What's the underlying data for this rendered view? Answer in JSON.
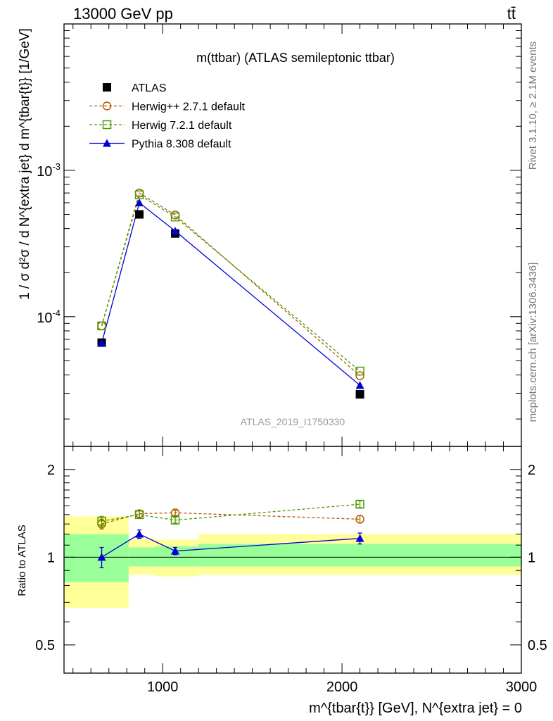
{
  "header": {
    "left": "13000 GeV pp",
    "right": "tt̄"
  },
  "side": {
    "rivet": "Rivet 3.1.10, ≥ 2.1M events",
    "mcplots": "mcplots.cern.ch [arXiv:1306.3436]"
  },
  "chart_data": {
    "type": "line",
    "title": "m(ttbar) (ATLAS semileptonic ttbar)",
    "analysis_tag": "ATLAS_2019_I1750330",
    "ylabel": "1 / σ d²σ / d N^{extra jet} d m^{tbar{t}} [1/GeV]",
    "xlabel": "m^{tbar{t}} [GeV], N^{extra jet} = 0",
    "ratio_ylabel": "Ratio to ATLAS",
    "xlim": [
      450,
      3000
    ],
    "ylim": [
      1.3e-05,
      0.01
    ],
    "y_scale": "log",
    "ratio_ylim": [
      0.4,
      2.4
    ],
    "ratio_y_scale": "log",
    "legend_position": "top-left",
    "x_ticks": [
      1000,
      2000,
      3000
    ],
    "x_tick_labels": [
      "1000",
      "2000",
      "3000"
    ],
    "y_ticks": [
      {
        "value": 0.001,
        "base": "10",
        "exp": "-3"
      },
      {
        "value": 0.0001,
        "base": "10",
        "exp": "-4"
      }
    ],
    "ratio_ticks": [
      {
        "value": 0.5,
        "label": "0.5"
      },
      {
        "value": 1,
        "label": "1"
      },
      {
        "value": 2,
        "label": "2"
      }
    ],
    "bins": [
      {
        "lo": 450,
        "hi": 810
      },
      {
        "lo": 810,
        "hi": 960
      },
      {
        "lo": 960,
        "hi": 1200
      },
      {
        "lo": 1200,
        "hi": 3000
      }
    ],
    "x": [
      660,
      870,
      1070,
      2100
    ],
    "band_outer": [
      [
        0.67,
        1.38
      ],
      [
        0.87,
        1.16
      ],
      [
        0.86,
        1.15
      ],
      [
        0.87,
        1.2
      ]
    ],
    "band_inner": [
      [
        0.82,
        1.2
      ],
      [
        0.93,
        1.08
      ],
      [
        0.93,
        1.09
      ],
      [
        0.93,
        1.11
      ]
    ],
    "series": [
      {
        "name": "ATLAS",
        "marker": "square-filled",
        "color": "#000000",
        "dashed": false,
        "values": [
          6.65e-05,
          0.0005,
          0.00037,
          2.95e-05
        ],
        "ratio": [
          1,
          1,
          1,
          1
        ],
        "ratio_err": [
          0,
          0,
          0,
          0
        ]
      },
      {
        "name": "Herwig++ 2.7.1 default",
        "marker": "circle-open",
        "color": "#b35900",
        "dashed": true,
        "values": [
          8.65e-05,
          0.0007,
          0.000495,
          3.95e-05
        ],
        "ratio": [
          1.3,
          1.41,
          1.42,
          1.35
        ],
        "ratio_err": [
          0.05,
          0.04,
          0.03,
          0.04
        ]
      },
      {
        "name": "Herwig 7.2.1 default",
        "marker": "square-open",
        "color": "#4c9a00",
        "dashed": true,
        "values": [
          8.65e-05,
          0.00068,
          0.00048,
          4.25e-05
        ],
        "ratio": [
          1.33,
          1.4,
          1.34,
          1.52
        ],
        "ratio_err": [
          0.05,
          0.04,
          0.03,
          0.04
        ]
      },
      {
        "name": "Pythia 8.308 default",
        "marker": "triangle-filled",
        "color": "#0000d4",
        "dashed": false,
        "values": [
          6.6e-05,
          0.0006,
          0.000385,
          3.4e-05
        ],
        "ratio": [
          1.0,
          1.2,
          1.05,
          1.16
        ],
        "ratio_err": [
          0.08,
          0.04,
          0.03,
          0.05
        ]
      }
    ]
  }
}
